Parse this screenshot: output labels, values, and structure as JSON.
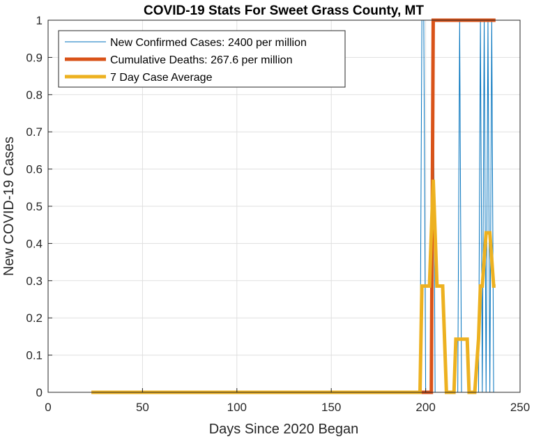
{
  "chart_data": {
    "type": "line",
    "title": "COVID-19 Stats For Sweet Grass County, MT",
    "xlabel": "Days Since 2020 Began",
    "ylabel": "New COVID-19 Cases",
    "xlim": [
      0,
      250
    ],
    "ylim": [
      0,
      1
    ],
    "x_ticks": [
      "0",
      "50",
      "100",
      "150",
      "200",
      "250"
    ],
    "y_ticks": [
      "0",
      "0.1",
      "0.2",
      "0.3",
      "0.4",
      "0.5",
      "0.6",
      "0.7",
      "0.8",
      "0.9",
      "1"
    ],
    "grid": true,
    "legend_position": "top-left",
    "series": [
      {
        "name": "New Confirmed Cases: 2400 per million",
        "color": "#0072BD",
        "linewidth": "thin",
        "x": [
          23,
          197,
          198,
          199,
          200,
          201,
          202,
          203,
          204,
          205,
          216,
          217,
          218,
          219,
          227,
          228,
          229,
          230,
          231,
          232,
          233,
          234,
          235,
          236,
          237
        ],
        "y": [
          0,
          0,
          1,
          1,
          0,
          0,
          0,
          0,
          1,
          0,
          0,
          0,
          1,
          0,
          0,
          0,
          1,
          0,
          1,
          0,
          1,
          0,
          1,
          0,
          0
        ]
      },
      {
        "name": "Cumulative Deaths: 267.6 per million",
        "color": "#D95319",
        "linewidth": "thick",
        "x": [
          23,
          203,
          204,
          237
        ],
        "y": [
          0,
          0,
          1,
          1
        ]
      },
      {
        "name": "7 Day Case Average",
        "color": "#EDB120",
        "linewidth": "thick",
        "x": [
          23,
          197,
          198,
          202,
          204,
          206,
          208,
          209,
          211,
          214,
          215,
          216,
          222,
          223,
          226,
          228,
          229,
          230,
          232,
          234,
          236,
          237
        ],
        "y": [
          0,
          0,
          0.2857,
          0.2857,
          0.5714,
          0.2857,
          0.2857,
          0.2857,
          0,
          0,
          0,
          0.1429,
          0.1429,
          0,
          0,
          0.1429,
          0.2857,
          0.2857,
          0.4286,
          0.4286,
          0.2857,
          0.2857
        ]
      }
    ]
  }
}
